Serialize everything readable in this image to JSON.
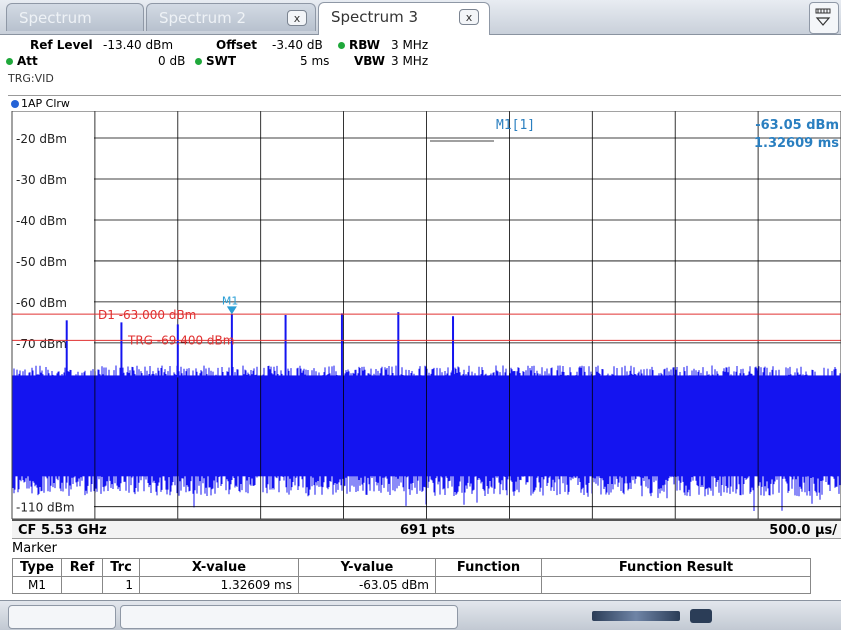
{
  "tabs": [
    {
      "label": "Spectrum",
      "active": false
    },
    {
      "label": "Spectrum 2",
      "active": false
    },
    {
      "label": "Spectrum 3",
      "active": true
    }
  ],
  "tab_close_glyph": "x",
  "settings": {
    "ref_level_label": "Ref Level",
    "ref_level_value": "-13.40 dBm",
    "offset_label": "Offset",
    "offset_value": "-3.40 dB",
    "rbw_label": "RBW",
    "rbw_value": "3 MHz",
    "att_label": "Att",
    "att_value": "0 dB",
    "swt_label": "SWT",
    "swt_value": "5 ms",
    "vbw_label": "VBW",
    "vbw_value": "3 MHz",
    "trigger": "TRG:VID"
  },
  "trace_label": "1AP Clrw",
  "diagram": {
    "y_ticks": [
      {
        "value": -20,
        "label": "-20 dBm"
      },
      {
        "value": -30,
        "label": "-30 dBm"
      },
      {
        "value": -40,
        "label": "-40 dBm"
      },
      {
        "value": -50,
        "label": "-50 dBm"
      },
      {
        "value": -60,
        "label": "-60 dBm"
      },
      {
        "value": -70,
        "label": "-70 dBm"
      },
      {
        "value": -110,
        "label": "-110 dBm"
      }
    ],
    "y_range_dbm": [
      -113,
      -13.4
    ],
    "x_range_ms": [
      0,
      5
    ],
    "x_divisions": 10,
    "d1_line": {
      "label": "D1 -63.000 dBm",
      "value": -63.0
    },
    "trg_line": {
      "label": "TRG -69.400 dBm",
      "value": -69.4
    },
    "marker": {
      "name": "M1",
      "x_ms": 1.32609,
      "y_dbm": -63.05
    },
    "marker_readout": {
      "name": "M1[1]",
      "level": "-63.05 dBm",
      "time": "1.32609 ms"
    },
    "noise_band_dbm": [
      -106,
      -76
    ],
    "spikes": [
      {
        "x_ms": 0.33,
        "y_dbm": -64.5
      },
      {
        "x_ms": 0.66,
        "y_dbm": -65.0
      },
      {
        "x_ms": 1.0,
        "y_dbm": -65.5
      },
      {
        "x_ms": 1.32609,
        "y_dbm": -63.05
      },
      {
        "x_ms": 1.65,
        "y_dbm": -63.2
      },
      {
        "x_ms": 1.99,
        "y_dbm": -62.8
      },
      {
        "x_ms": 2.33,
        "y_dbm": -62.5
      },
      {
        "x_ms": 2.66,
        "y_dbm": -63.5
      }
    ],
    "colors": {
      "trace": "#1414f0",
      "limit": "#e03030",
      "marker": "#2a9fd6",
      "grid": "#000000"
    }
  },
  "bottom_bar": {
    "cf": "CF 5.53 GHz",
    "points": "691 pts",
    "span": "500.0 µs/"
  },
  "marker_table": {
    "title": "Marker",
    "headers": [
      "Type",
      "Ref",
      "Trc",
      "X-value",
      "Y-value",
      "Function",
      "Function Result"
    ],
    "rows": [
      {
        "type": "M1",
        "ref": "",
        "trc": "1",
        "x": "1.32609 ms",
        "y": "-63.05 dBm",
        "function": "",
        "result": ""
      }
    ]
  }
}
